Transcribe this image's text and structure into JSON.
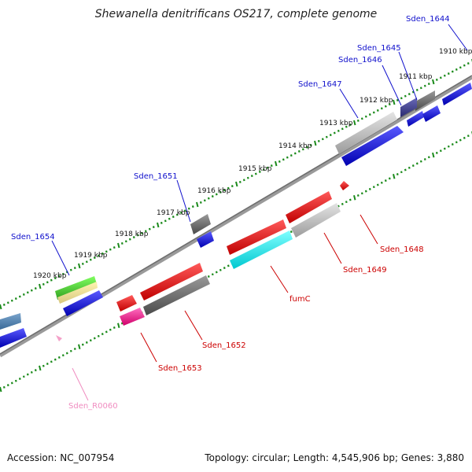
{
  "title": "Shewanella denitrificans OS217, complete genome",
  "footer": {
    "accession": "Accession: NC_007954",
    "summary": "Topology: circular; Length: 4,545,906 bp; Genes: 3,880"
  },
  "kbp_labels": [
    "1910 kbp",
    "1911 kbp",
    "1912 kbp",
    "1913 kbp",
    "1914 kbp",
    "1915 kbp",
    "1916 kbp",
    "1917 kbp",
    "1918 kbp",
    "1919 kbp",
    "1920 kbp"
  ],
  "gene_labels": {
    "sden_1644": "Sden_1644",
    "sden_1645": "Sden_1645",
    "sden_1646": "Sden_1646",
    "sden_1647": "Sden_1647",
    "sden_1651": "Sden_1651",
    "sden_1654": "Sden_1654",
    "sden_1648": "Sden_1648",
    "sden_1649": "Sden_1649",
    "fumC": "fumC",
    "sden_1652": "Sden_1652",
    "sden_1653": "Sden_1653",
    "sden_r0060": "Sden_R0060"
  },
  "colors": {
    "forward_label": "#1010cc",
    "reverse_label": "#cc0000",
    "rna_label": "#f08cc0",
    "axis": "#8a8a8a",
    "tick": "#1a8a1a"
  }
}
